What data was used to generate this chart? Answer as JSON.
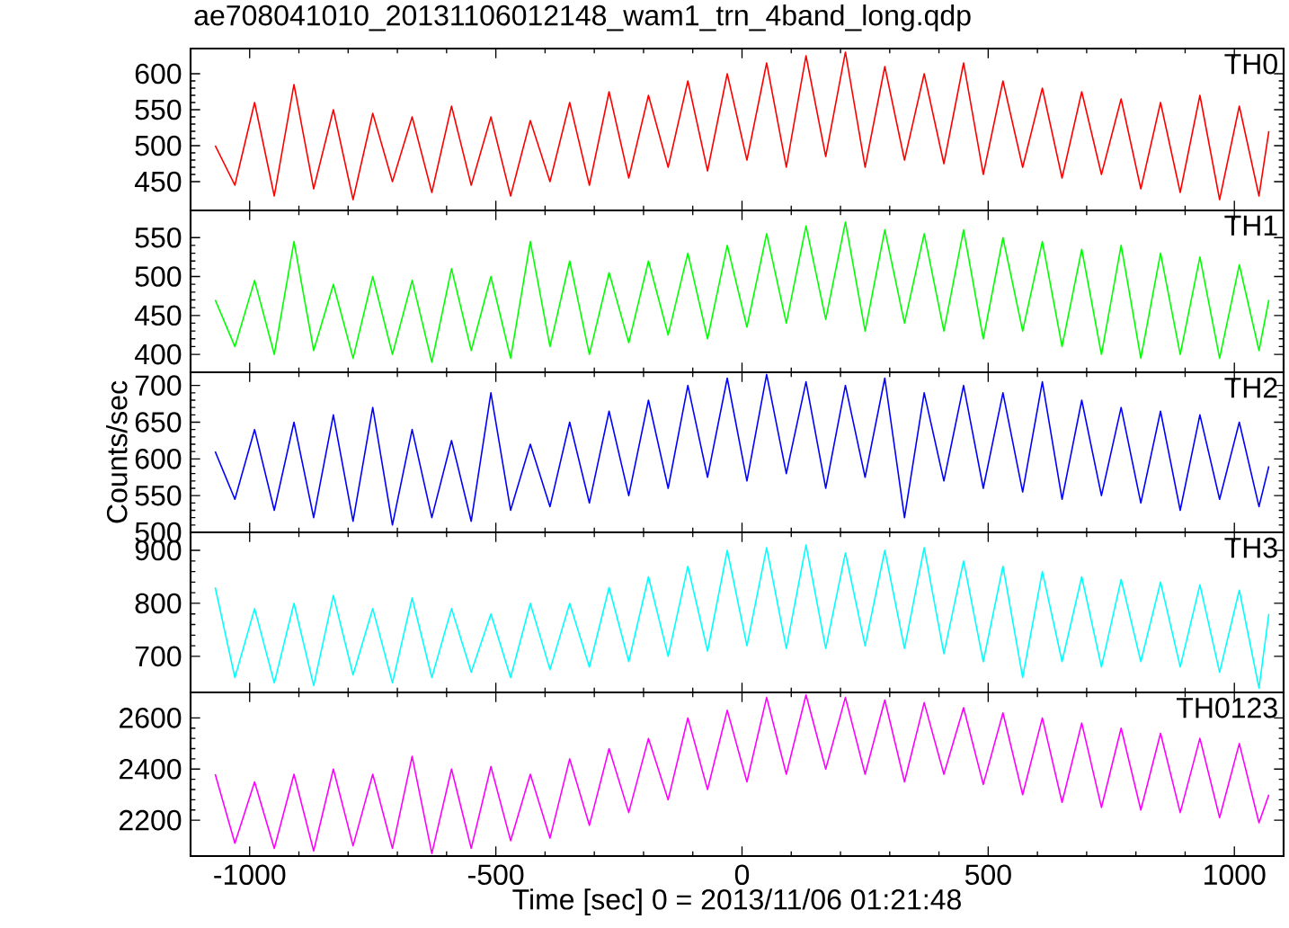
{
  "chart_data": [
    {
      "type": "line",
      "title": "ae708041010_20131106012148_wam1_trn_4band_long.qdp",
      "tick_labels": "y",
      "marker": "none",
      "line_style": "solid",
      "xlim": [
        -1120,
        1100
      ],
      "xticks": [
        -1000,
        -500,
        0,
        500,
        1000
      ],
      "ylim": [
        410,
        635
      ],
      "yticks": [
        450,
        500,
        550,
        600
      ],
      "x": [
        -1070,
        -1030,
        -990,
        -950,
        -910,
        -870,
        -830,
        -790,
        -750,
        -710,
        -670,
        -630,
        -590,
        -550,
        -510,
        -470,
        -430,
        -390,
        -350,
        -310,
        -270,
        -230,
        -190,
        -150,
        -110,
        -70,
        -30,
        10,
        50,
        90,
        130,
        170,
        210,
        250,
        290,
        330,
        370,
        410,
        450,
        490,
        530,
        570,
        610,
        650,
        690,
        730,
        770,
        810,
        850,
        890,
        930,
        970,
        1010,
        1050,
        1070
      ],
      "series": [
        {
          "name": "TH0",
          "color": "#ff0000",
          "values": [
            500,
            445,
            560,
            430,
            585,
            440,
            550,
            425,
            545,
            450,
            540,
            435,
            555,
            445,
            540,
            430,
            535,
            450,
            560,
            445,
            575,
            455,
            570,
            470,
            590,
            465,
            600,
            480,
            615,
            470,
            625,
            485,
            630,
            470,
            610,
            480,
            600,
            475,
            615,
            460,
            590,
            470,
            580,
            455,
            575,
            460,
            565,
            440,
            560,
            435,
            570,
            425,
            555,
            430,
            520
          ]
        }
      ]
    },
    {
      "type": "line",
      "tick_labels": "y",
      "marker": "none",
      "line_style": "solid",
      "xlim": [
        -1120,
        1100
      ],
      "xticks": [
        -1000,
        -500,
        0,
        500,
        1000
      ],
      "ylim": [
        377,
        585
      ],
      "yticks": [
        400,
        450,
        500,
        550
      ],
      "x": [
        -1070,
        -1030,
        -990,
        -950,
        -910,
        -870,
        -830,
        -790,
        -750,
        -710,
        -670,
        -630,
        -590,
        -550,
        -510,
        -470,
        -430,
        -390,
        -350,
        -310,
        -270,
        -230,
        -190,
        -150,
        -110,
        -70,
        -30,
        10,
        50,
        90,
        130,
        170,
        210,
        250,
        290,
        330,
        370,
        410,
        450,
        490,
        530,
        570,
        610,
        650,
        690,
        730,
        770,
        810,
        850,
        890,
        930,
        970,
        1010,
        1050,
        1070
      ],
      "series": [
        {
          "name": "TH1",
          "color": "#00ff00",
          "values": [
            470,
            410,
            495,
            400,
            545,
            405,
            490,
            395,
            500,
            400,
            495,
            390,
            510,
            405,
            500,
            395,
            545,
            410,
            520,
            400,
            505,
            415,
            520,
            425,
            530,
            420,
            540,
            435,
            555,
            440,
            565,
            445,
            570,
            430,
            560,
            440,
            555,
            430,
            560,
            420,
            550,
            430,
            545,
            410,
            535,
            400,
            540,
            395,
            530,
            400,
            525,
            395,
            515,
            405,
            470
          ]
        }
      ]
    },
    {
      "type": "line",
      "ylabel": "Counts/sec",
      "tick_labels": "y",
      "marker": "none",
      "line_style": "solid",
      "xlim": [
        -1120,
        1100
      ],
      "xticks": [
        -1000,
        -500,
        0,
        500,
        1000
      ],
      "ylim": [
        500,
        718
      ],
      "yticks": [
        500,
        550,
        600,
        650,
        700
      ],
      "x": [
        -1070,
        -1030,
        -990,
        -950,
        -910,
        -870,
        -830,
        -790,
        -750,
        -710,
        -670,
        -630,
        -590,
        -550,
        -510,
        -470,
        -430,
        -390,
        -350,
        -310,
        -270,
        -230,
        -190,
        -150,
        -110,
        -70,
        -30,
        10,
        50,
        90,
        130,
        170,
        210,
        250,
        290,
        330,
        370,
        410,
        450,
        490,
        530,
        570,
        610,
        650,
        690,
        730,
        770,
        810,
        850,
        890,
        930,
        970,
        1010,
        1050,
        1070
      ],
      "series": [
        {
          "name": "TH2",
          "color": "#0000ff",
          "values": [
            610,
            545,
            640,
            530,
            650,
            520,
            660,
            515,
            670,
            510,
            640,
            520,
            625,
            515,
            690,
            530,
            620,
            535,
            650,
            540,
            665,
            550,
            680,
            560,
            700,
            575,
            710,
            570,
            715,
            580,
            705,
            560,
            700,
            575,
            710,
            520,
            690,
            570,
            700,
            560,
            690,
            555,
            705,
            545,
            680,
            550,
            670,
            540,
            665,
            530,
            660,
            545,
            650,
            535,
            590
          ]
        }
      ]
    },
    {
      "type": "line",
      "tick_labels": "y",
      "marker": "none",
      "line_style": "solid",
      "xlim": [
        -1120,
        1100
      ],
      "xticks": [
        -1000,
        -500,
        0,
        500,
        1000
      ],
      "ylim": [
        632,
        934
      ],
      "yticks": [
        700,
        800,
        900
      ],
      "x": [
        -1070,
        -1030,
        -990,
        -950,
        -910,
        -870,
        -830,
        -790,
        -750,
        -710,
        -670,
        -630,
        -590,
        -550,
        -510,
        -470,
        -430,
        -390,
        -350,
        -310,
        -270,
        -230,
        -190,
        -150,
        -110,
        -70,
        -30,
        10,
        50,
        90,
        130,
        170,
        210,
        250,
        290,
        330,
        370,
        410,
        450,
        490,
        530,
        570,
        610,
        650,
        690,
        730,
        770,
        810,
        850,
        890,
        930,
        970,
        1010,
        1050,
        1070
      ],
      "series": [
        {
          "name": "TH3",
          "color": "#00ffff",
          "values": [
            830,
            660,
            790,
            650,
            800,
            645,
            815,
            665,
            790,
            650,
            810,
            660,
            790,
            670,
            780,
            660,
            800,
            675,
            800,
            680,
            830,
            690,
            850,
            700,
            870,
            710,
            900,
            720,
            905,
            715,
            910,
            715,
            895,
            720,
            900,
            715,
            905,
            705,
            880,
            690,
            870,
            660,
            860,
            690,
            850,
            680,
            845,
            690,
            840,
            680,
            835,
            670,
            825,
            640,
            780
          ]
        }
      ]
    },
    {
      "type": "line",
      "xlabel": "Time [sec] 0 = 2013/11/06 01:21:48",
      "marker": "none",
      "line_style": "solid",
      "xlim": [
        -1120,
        1100
      ],
      "xticks": [
        -1000,
        -500,
        0,
        500,
        1000
      ],
      "ylim": [
        2060,
        2700
      ],
      "yticks": [
        2200,
        2400,
        2600
      ],
      "x": [
        -1070,
        -1030,
        -990,
        -950,
        -910,
        -870,
        -830,
        -790,
        -750,
        -710,
        -670,
        -630,
        -590,
        -550,
        -510,
        -470,
        -430,
        -390,
        -350,
        -310,
        -270,
        -230,
        -190,
        -150,
        -110,
        -70,
        -30,
        10,
        50,
        90,
        130,
        170,
        210,
        250,
        290,
        330,
        370,
        410,
        450,
        490,
        530,
        570,
        610,
        650,
        690,
        730,
        770,
        810,
        850,
        890,
        930,
        970,
        1010,
        1050,
        1070
      ],
      "series": [
        {
          "name": "TH0123",
          "color": "#ff00ff",
          "values": [
            2380,
            2110,
            2350,
            2090,
            2380,
            2080,
            2400,
            2100,
            2380,
            2090,
            2450,
            2070,
            2400,
            2090,
            2410,
            2120,
            2380,
            2130,
            2440,
            2180,
            2480,
            2230,
            2520,
            2280,
            2600,
            2320,
            2630,
            2350,
            2680,
            2380,
            2690,
            2400,
            2680,
            2380,
            2670,
            2350,
            2660,
            2380,
            2640,
            2340,
            2620,
            2300,
            2600,
            2270,
            2580,
            2250,
            2560,
            2240,
            2540,
            2230,
            2520,
            2210,
            2500,
            2190,
            2300
          ]
        }
      ]
    }
  ]
}
